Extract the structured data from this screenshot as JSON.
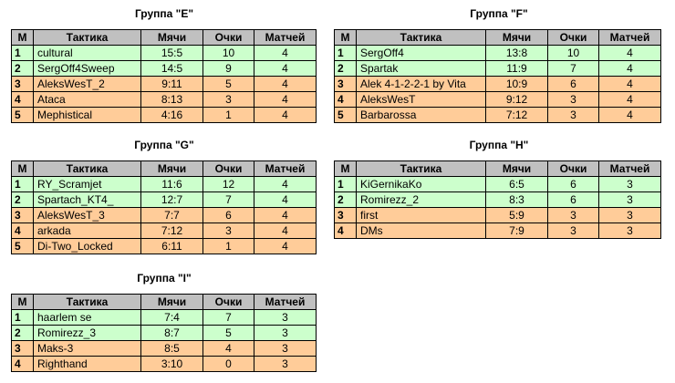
{
  "headers": {
    "pos": "М",
    "team": "Тактика",
    "balls": "Мячи",
    "points": "Очки",
    "games": "Матчей"
  },
  "groups": [
    {
      "title": "Группа \"E\"",
      "rows": [
        {
          "pos": "1",
          "team": "cultural",
          "balls": "15:5",
          "points": "10",
          "games": "4",
          "status": "green"
        },
        {
          "pos": "2",
          "team": "SergOff4Sweep",
          "balls": "14:5",
          "points": "9",
          "games": "4",
          "status": "green"
        },
        {
          "pos": "3",
          "team": "AleksWesT_2",
          "balls": "9:11",
          "points": "5",
          "games": "4",
          "status": "orange"
        },
        {
          "pos": "4",
          "team": "Ataca",
          "balls": "8:13",
          "points": "3",
          "games": "4",
          "status": "orange"
        },
        {
          "pos": "5",
          "team": "Mephistical",
          "balls": "4:16",
          "points": "1",
          "games": "4",
          "status": "orange"
        }
      ]
    },
    {
      "title": "Группа \"F\"",
      "rows": [
        {
          "pos": "1",
          "team": "SergOff4",
          "balls": "13:8",
          "points": "10",
          "games": "4",
          "status": "green"
        },
        {
          "pos": "2",
          "team": "Spartak",
          "balls": "11:9",
          "points": "7",
          "games": "4",
          "status": "green"
        },
        {
          "pos": "3",
          "team": "Alek 4-1-2-2-1 by Vita",
          "balls": "10:9",
          "points": "6",
          "games": "4",
          "status": "orange"
        },
        {
          "pos": "4",
          "team": "AleksWesT",
          "balls": "9:12",
          "points": "3",
          "games": "4",
          "status": "orange"
        },
        {
          "pos": "5",
          "team": "Barbarossa",
          "balls": "7:12",
          "points": "3",
          "games": "4",
          "status": "orange"
        }
      ]
    },
    {
      "title": "Группа \"G\"",
      "rows": [
        {
          "pos": "1",
          "team": "RY_Scramjet",
          "balls": "11:6",
          "points": "12",
          "games": "4",
          "status": "green"
        },
        {
          "pos": "2",
          "team": "Spartach_KT4_",
          "balls": "12:7",
          "points": "7",
          "games": "4",
          "status": "green"
        },
        {
          "pos": "3",
          "team": "AleksWesT_3",
          "balls": "7:7",
          "points": "6",
          "games": "4",
          "status": "orange"
        },
        {
          "pos": "4",
          "team": "arkada",
          "balls": "7:12",
          "points": "3",
          "games": "4",
          "status": "orange"
        },
        {
          "pos": "5",
          "team": "Di-Two_Locked",
          "balls": "6:11",
          "points": "1",
          "games": "4",
          "status": "orange"
        }
      ]
    },
    {
      "title": "Группа \"H\"",
      "rows": [
        {
          "pos": "1",
          "team": "KiGernikaKo",
          "balls": "6:5",
          "points": "6",
          "games": "3",
          "status": "green"
        },
        {
          "pos": "2",
          "team": "Romirezz_2",
          "balls": "8:3",
          "points": "6",
          "games": "3",
          "status": "green"
        },
        {
          "pos": "3",
          "team": "first",
          "balls": "5:9",
          "points": "3",
          "games": "3",
          "status": "orange"
        },
        {
          "pos": "4",
          "team": "DMs",
          "balls": "7:9",
          "points": "3",
          "games": "3",
          "status": "orange"
        }
      ]
    },
    {
      "title": "Группа \"I\"",
      "rows": [
        {
          "pos": "1",
          "team": "haarlem se",
          "balls": "7:4",
          "points": "7",
          "games": "3",
          "status": "green"
        },
        {
          "pos": "2",
          "team": "Romirezz_3",
          "balls": "8:7",
          "points": "5",
          "games": "3",
          "status": "green"
        },
        {
          "pos": "3",
          "team": "Maks-3",
          "balls": "8:5",
          "points": "4",
          "games": "3",
          "status": "orange"
        },
        {
          "pos": "4",
          "team": "Righthand",
          "balls": "3:10",
          "points": "0",
          "games": "3",
          "status": "orange"
        }
      ]
    }
  ]
}
